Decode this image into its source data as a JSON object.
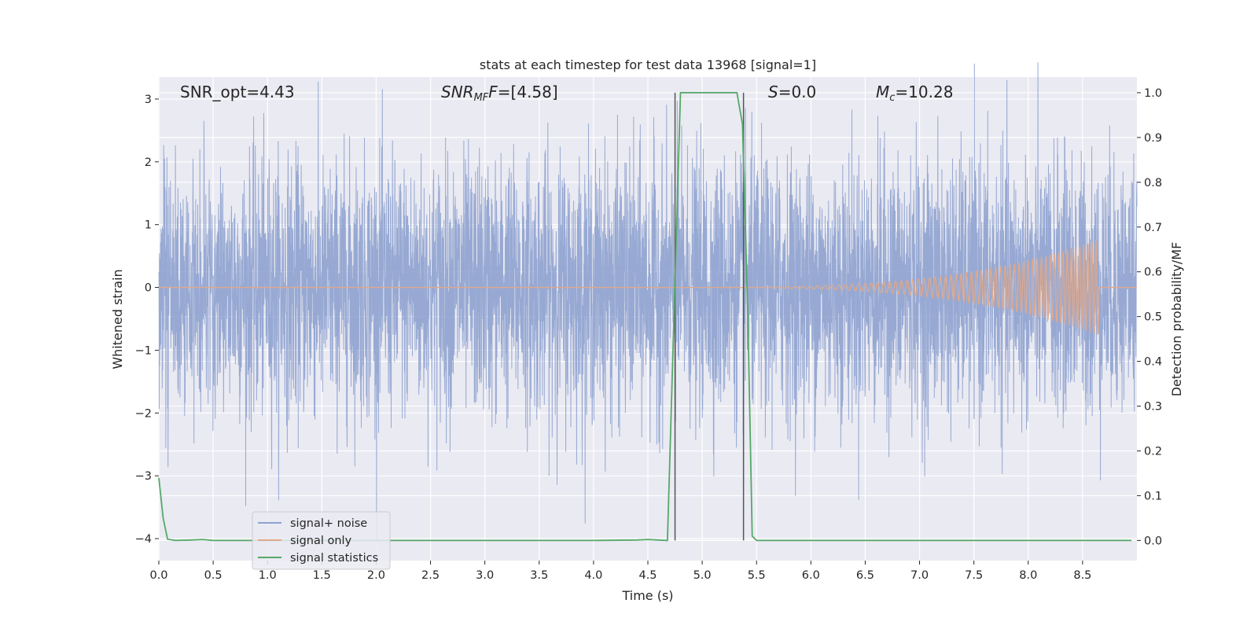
{
  "chart_data": {
    "type": "line",
    "title": "stats at each timestep for test data 13968 [signal=1]",
    "xlabel": "Time (s)",
    "ylabel_left": "Whitened strain",
    "ylabel_right": "Detection probability/MF",
    "xlim": [
      0.0,
      9.0
    ],
    "ylim_left": [
      -4.35,
      3.35
    ],
    "ylim_right": [
      -0.045,
      1.035
    ],
    "x_ticks": [
      "0.0",
      "0.5",
      "1.0",
      "1.5",
      "2.0",
      "2.5",
      "3.0",
      "3.5",
      "4.0",
      "4.5",
      "5.0",
      "5.5",
      "6.0",
      "6.5",
      "7.0",
      "7.5",
      "8.0",
      "8.5"
    ],
    "y_ticks_left": [
      "3",
      "2",
      "1",
      "0",
      "−1",
      "−2",
      "−3",
      "−4"
    ],
    "y_ticks_right": [
      "1.0",
      "0.9",
      "0.8",
      "0.7",
      "0.6",
      "0.5",
      "0.4",
      "0.3",
      "0.2",
      "0.1",
      "0.0"
    ],
    "grid": true,
    "legend_position": "lower-left",
    "annotations": {
      "snr_opt": "SNR_opt=4.43",
      "snr_mf_base": "SNR",
      "snr_mf_sub": "MF",
      "snr_mf_value": "=[4.58]",
      "s_base": "S",
      "s_value": "=0.0",
      "mc_base": "M",
      "mc_sub": "c",
      "mc_value": "=10.28"
    },
    "vertical_lines_x": [
      4.75,
      5.38
    ],
    "series": [
      {
        "name": "signal+ noise",
        "axis": "left",
        "color": "#8ea2cf",
        "description_values": "Gaussian-like whitened noise, roughly within ±2 with spikes to ±3.5, spanning 0–9 s"
      },
      {
        "name": "signal only",
        "axis": "left",
        "color": "#e0a88a",
        "chirp": {
          "start_x": 4.8,
          "peak_x": 8.65,
          "peak_amplitude": 0.75
        }
      },
      {
        "name": "signal statistics",
        "axis": "right",
        "color": "#55a868",
        "x": [
          0.0,
          0.04,
          0.08,
          0.15,
          0.3,
          0.4,
          0.5,
          1.0,
          2.0,
          3.0,
          4.0,
          4.4,
          4.5,
          4.68,
          4.8,
          4.82,
          5.0,
          5.2,
          5.32,
          5.37,
          5.42,
          5.46,
          5.5,
          5.6,
          6.0,
          7.0,
          8.0,
          8.95
        ],
        "values": [
          0.14,
          0.05,
          0.003,
          0.0,
          0.001,
          0.002,
          0.0,
          0.0,
          0.0,
          0.0,
          0.0,
          0.001,
          0.002,
          0.0,
          1.0,
          1.0,
          1.0,
          1.0,
          1.0,
          0.93,
          0.5,
          0.01,
          0.0,
          0.0,
          0.0,
          0.0,
          0.0,
          0.0
        ]
      }
    ]
  },
  "legend": {
    "items": [
      {
        "label": "signal+ noise",
        "color": "#8ea2cf"
      },
      {
        "label": "signal only",
        "color": "#e0a88a"
      },
      {
        "label": "signal statistics",
        "color": "#55a868"
      }
    ]
  },
  "style": {
    "axes_bg": "#eaeaf2",
    "grid_color": "#ffffff",
    "vline_color": "#555555"
  }
}
